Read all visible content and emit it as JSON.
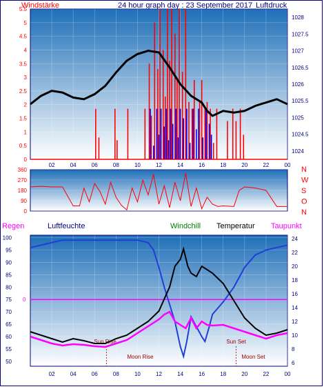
{
  "header": {
    "title": "24 hour graph day : 23 September 2017",
    "left_label": "Windstärke",
    "right_label": "Luftdruck"
  },
  "colors": {
    "bg_top": "#1f6fb8",
    "bg_bottom": "#ffffff",
    "axis": "#000080",
    "wind": "#ff0000",
    "gust": "#0000ff",
    "pressure": "#000000",
    "humidity": "#1f3fd8",
    "dewpoint": "#ff00ff",
    "temperature": "#000000",
    "rain": "#ff00ff",
    "sun_moon": "#990000"
  },
  "chart_data": [
    {
      "type": "line",
      "name": "wind-pressure",
      "x_ticks": [
        "02",
        "04",
        "06",
        "08",
        "10",
        "12",
        "14",
        "16",
        "18",
        "20",
        "22",
        "00"
      ],
      "y_left_ticks": [
        "0",
        "0.5",
        "1",
        "1.5",
        "2",
        "2.5",
        "3",
        "3.5",
        "4",
        "4.5",
        "5",
        "5.5"
      ],
      "y_left_range": [
        0,
        5.5
      ],
      "y_right_ticks": [
        "1024",
        "1024.5",
        "1025",
        "1025.5",
        "1026",
        "1026.5",
        "1027",
        "1027.5",
        "1028"
      ],
      "y_right_range": [
        1023.75,
        1028.25
      ],
      "wind_bars": [
        {
          "h": 6.1,
          "v": 1.85
        },
        {
          "h": 6.4,
          "v": 0.8
        },
        {
          "h": 7.9,
          "v": 1.85
        },
        {
          "h": 8.1,
          "v": 0.7
        },
        {
          "h": 9.1,
          "v": 1.85
        },
        {
          "h": 10.7,
          "v": 1.85
        },
        {
          "h": 11.1,
          "v": 3.5
        },
        {
          "h": 11.3,
          "v": 1.6
        },
        {
          "h": 11.6,
          "v": 5.0
        },
        {
          "h": 11.9,
          "v": 3.3
        },
        {
          "h": 12.1,
          "v": 5.5
        },
        {
          "h": 12.4,
          "v": 4.0
        },
        {
          "h": 12.6,
          "v": 2.3
        },
        {
          "h": 12.8,
          "v": 5.5
        },
        {
          "h": 13.0,
          "v": 3.6
        },
        {
          "h": 13.2,
          "v": 5.5
        },
        {
          "h": 13.5,
          "v": 4.6
        },
        {
          "h": 13.7,
          "v": 2.9
        },
        {
          "h": 13.9,
          "v": 5.5
        },
        {
          "h": 14.2,
          "v": 3.2
        },
        {
          "h": 14.5,
          "v": 5.5
        },
        {
          "h": 14.8,
          "v": 2.1
        },
        {
          "h": 15.1,
          "v": 1.85
        },
        {
          "h": 15.3,
          "v": 2.9
        },
        {
          "h": 15.8,
          "v": 2.1
        },
        {
          "h": 16.0,
          "v": 2.9
        },
        {
          "h": 16.3,
          "v": 1.85
        },
        {
          "h": 16.5,
          "v": 2.1
        },
        {
          "h": 16.8,
          "v": 1.85
        },
        {
          "h": 17.1,
          "v": 0.6
        },
        {
          "h": 17.4,
          "v": 1.85
        },
        {
          "h": 18.4,
          "v": 1.4
        },
        {
          "h": 18.9,
          "v": 1.85
        },
        {
          "h": 19.2,
          "v": 1.4
        },
        {
          "h": 19.6,
          "v": 1.85
        },
        {
          "h": 19.9,
          "v": 0.9
        }
      ],
      "gust_bars": [
        {
          "h": 11.2,
          "v": 1.85
        },
        {
          "h": 11.5,
          "v": 0.5
        },
        {
          "h": 11.8,
          "v": 1.85
        },
        {
          "h": 12.0,
          "v": 0.9
        },
        {
          "h": 12.2,
          "v": 1.85
        },
        {
          "h": 12.5,
          "v": 1.2
        },
        {
          "h": 12.7,
          "v": 1.85
        },
        {
          "h": 12.9,
          "v": 0.7
        },
        {
          "h": 13.1,
          "v": 1.85
        },
        {
          "h": 13.3,
          "v": 1.3
        },
        {
          "h": 13.6,
          "v": 1.85
        },
        {
          "h": 13.8,
          "v": 0.8
        },
        {
          "h": 14.0,
          "v": 1.85
        },
        {
          "h": 14.3,
          "v": 1.5
        },
        {
          "h": 14.6,
          "v": 1.85
        },
        {
          "h": 14.9,
          "v": 0.6
        },
        {
          "h": 15.2,
          "v": 1.85
        },
        {
          "h": 15.5,
          "v": 1.1
        },
        {
          "h": 15.7,
          "v": 1.85
        },
        {
          "h": 16.1,
          "v": 0.8
        },
        {
          "h": 16.4,
          "v": 1.85
        },
        {
          "h": 16.7,
          "v": 1.3
        },
        {
          "h": 16.9,
          "v": 0.9
        }
      ],
      "pressure": [
        {
          "h": 0.0,
          "v": 1025.4
        },
        {
          "h": 1.0,
          "v": 1025.65
        },
        {
          "h": 2.0,
          "v": 1025.8
        },
        {
          "h": 3.0,
          "v": 1025.75
        },
        {
          "h": 4.0,
          "v": 1025.6
        },
        {
          "h": 5.0,
          "v": 1025.55
        },
        {
          "h": 6.0,
          "v": 1025.7
        },
        {
          "h": 7.0,
          "v": 1025.95
        },
        {
          "h": 8.0,
          "v": 1026.35
        },
        {
          "h": 9.0,
          "v": 1026.7
        },
        {
          "h": 10.0,
          "v": 1026.9
        },
        {
          "h": 11.0,
          "v": 1027.0
        },
        {
          "h": 12.0,
          "v": 1026.95
        },
        {
          "h": 13.0,
          "v": 1026.5
        },
        {
          "h": 14.0,
          "v": 1026.0
        },
        {
          "h": 15.0,
          "v": 1025.65
        },
        {
          "h": 16.0,
          "v": 1025.45
        },
        {
          "h": 16.5,
          "v": 1025.2
        },
        {
          "h": 17.0,
          "v": 1025.05
        },
        {
          "h": 18.0,
          "v": 1025.2
        },
        {
          "h": 19.0,
          "v": 1025.15
        },
        {
          "h": 20.0,
          "v": 1025.2
        },
        {
          "h": 21.0,
          "v": 1025.35
        },
        {
          "h": 22.0,
          "v": 1025.45
        },
        {
          "h": 23.0,
          "v": 1025.55
        },
        {
          "h": 24.0,
          "v": 1025.4
        }
      ]
    },
    {
      "type": "scatter",
      "name": "wind-direction",
      "y_left_ticks": [
        "0",
        "90",
        "180",
        "270",
        "360"
      ],
      "y_range": [
        0,
        360
      ],
      "compass": [
        "N",
        "W",
        "S",
        "O",
        "N"
      ],
      "direction": [
        {
          "h": 0.0,
          "v": 210
        },
        {
          "h": 1.0,
          "v": 215
        },
        {
          "h": 2.0,
          "v": 210
        },
        {
          "h": 3.0,
          "v": 210
        },
        {
          "h": 4.0,
          "v": 45
        },
        {
          "h": 4.6,
          "v": 45
        },
        {
          "h": 5.0,
          "v": 200
        },
        {
          "h": 5.5,
          "v": 80
        },
        {
          "h": 6.0,
          "v": 240
        },
        {
          "h": 6.5,
          "v": 170
        },
        {
          "h": 7.0,
          "v": 60
        },
        {
          "h": 7.5,
          "v": 250
        },
        {
          "h": 8.0,
          "v": 120
        },
        {
          "h": 8.5,
          "v": 50
        },
        {
          "h": 9.0,
          "v": 10
        },
        {
          "h": 9.5,
          "v": 200
        },
        {
          "h": 10.0,
          "v": 80
        },
        {
          "h": 10.5,
          "v": 270
        },
        {
          "h": 11.0,
          "v": 140
        },
        {
          "h": 11.5,
          "v": 320
        },
        {
          "h": 12.0,
          "v": 60
        },
        {
          "h": 12.5,
          "v": 220
        },
        {
          "h": 13.0,
          "v": 30
        },
        {
          "h": 13.5,
          "v": 250
        },
        {
          "h": 14.0,
          "v": 90
        },
        {
          "h": 14.5,
          "v": 330
        },
        {
          "h": 15.0,
          "v": 40
        },
        {
          "h": 15.5,
          "v": 200
        },
        {
          "h": 16.0,
          "v": 20
        },
        {
          "h": 16.5,
          "v": 120
        },
        {
          "h": 17.0,
          "v": 60
        },
        {
          "h": 17.5,
          "v": 40
        },
        {
          "h": 18.0,
          "v": 45
        },
        {
          "h": 19.0,
          "v": 40
        },
        {
          "h": 19.5,
          "v": 180
        },
        {
          "h": 20.0,
          "v": 210
        },
        {
          "h": 21.0,
          "v": 200
        },
        {
          "h": 22.0,
          "v": 180
        },
        {
          "h": 23.0,
          "v": 40
        },
        {
          "h": 24.0,
          "v": 40
        }
      ]
    },
    {
      "type": "line",
      "name": "humidity-temperature",
      "y_left_ticks": [
        "50",
        "55",
        "60",
        "65",
        "70",
        "75",
        "80",
        "85",
        "90",
        "95",
        "100"
      ],
      "y_left_range": [
        48,
        101
      ],
      "y_right_ticks": [
        "6",
        "8",
        "10",
        "12",
        "14",
        "16",
        "18",
        "20",
        "22",
        "24"
      ],
      "y_right_range": [
        5.5,
        24.5
      ],
      "rain_label": "0",
      "rain_level": 75,
      "legend": [
        "Regen",
        "Luftfeuchte",
        "Windchill",
        "Temperatur",
        "Taupunkt"
      ],
      "events": [
        {
          "label": "Sun Rise",
          "h": 7.1
        },
        {
          "label": "Moon Rise",
          "h": 7.1
        },
        {
          "label": "Sun Set",
          "h": 19.2
        },
        {
          "label": "Moon Set",
          "h": 19.2
        }
      ],
      "humidity": [
        {
          "h": 0.0,
          "v": 96
        },
        {
          "h": 1.0,
          "v": 97
        },
        {
          "h": 2.0,
          "v": 98
        },
        {
          "h": 3.0,
          "v": 99
        },
        {
          "h": 6.0,
          "v": 99
        },
        {
          "h": 10.0,
          "v": 99
        },
        {
          "h": 11.0,
          "v": 98
        },
        {
          "h": 11.5,
          "v": 95
        },
        {
          "h": 12.0,
          "v": 88
        },
        {
          "h": 12.5,
          "v": 80
        },
        {
          "h": 13.0,
          "v": 73
        },
        {
          "h": 13.5,
          "v": 66
        },
        {
          "h": 14.0,
          "v": 56
        },
        {
          "h": 14.3,
          "v": 52
        },
        {
          "h": 14.6,
          "v": 58
        },
        {
          "h": 15.0,
          "v": 68
        },
        {
          "h": 15.5,
          "v": 64
        },
        {
          "h": 16.0,
          "v": 60
        },
        {
          "h": 16.3,
          "v": 58
        },
        {
          "h": 16.7,
          "v": 64
        },
        {
          "h": 17.0,
          "v": 69
        },
        {
          "h": 18.0,
          "v": 74
        },
        {
          "h": 19.0,
          "v": 80
        },
        {
          "h": 20.0,
          "v": 88
        },
        {
          "h": 21.0,
          "v": 93
        },
        {
          "h": 22.0,
          "v": 95
        },
        {
          "h": 23.0,
          "v": 96
        },
        {
          "h": 24.0,
          "v": 97
        }
      ],
      "temperature": [
        {
          "h": 0.0,
          "v": 10.5
        },
        {
          "h": 1.0,
          "v": 10.0
        },
        {
          "h": 2.0,
          "v": 9.5
        },
        {
          "h": 3.0,
          "v": 9.0
        },
        {
          "h": 4.0,
          "v": 9.5
        },
        {
          "h": 5.0,
          "v": 9.2
        },
        {
          "h": 6.0,
          "v": 8.8
        },
        {
          "h": 7.0,
          "v": 8.8
        },
        {
          "h": 8.0,
          "v": 9.5
        },
        {
          "h": 9.0,
          "v": 10.0
        },
        {
          "h": 10.0,
          "v": 11.0
        },
        {
          "h": 11.0,
          "v": 12.0
        },
        {
          "h": 12.0,
          "v": 13.5
        },
        {
          "h": 13.0,
          "v": 17.0
        },
        {
          "h": 13.5,
          "v": 20.0
        },
        {
          "h": 14.0,
          "v": 21.0
        },
        {
          "h": 14.3,
          "v": 22.5
        },
        {
          "h": 14.7,
          "v": 20.0
        },
        {
          "h": 15.0,
          "v": 19.0
        },
        {
          "h": 15.5,
          "v": 18.5
        },
        {
          "h": 16.0,
          "v": 20.0
        },
        {
          "h": 16.5,
          "v": 19.5
        },
        {
          "h": 17.0,
          "v": 19.0
        },
        {
          "h": 18.0,
          "v": 17.5
        },
        {
          "h": 19.0,
          "v": 15.0
        },
        {
          "h": 20.0,
          "v": 12.5
        },
        {
          "h": 21.0,
          "v": 11.0
        },
        {
          "h": 22.0,
          "v": 10.0
        },
        {
          "h": 23.0,
          "v": 10.3
        },
        {
          "h": 24.0,
          "v": 10.8
        }
      ],
      "dewpoint": [
        {
          "h": 0.0,
          "v": 9.8
        },
        {
          "h": 1.0,
          "v": 9.3
        },
        {
          "h": 2.0,
          "v": 8.8
        },
        {
          "h": 3.0,
          "v": 8.5
        },
        {
          "h": 4.0,
          "v": 8.7
        },
        {
          "h": 5.0,
          "v": 8.6
        },
        {
          "h": 6.0,
          "v": 8.4
        },
        {
          "h": 7.0,
          "v": 8.3
        },
        {
          "h": 8.0,
          "v": 8.8
        },
        {
          "h": 9.0,
          "v": 9.3
        },
        {
          "h": 10.0,
          "v": 10.3
        },
        {
          "h": 11.0,
          "v": 11.3
        },
        {
          "h": 12.0,
          "v": 12.3
        },
        {
          "h": 12.5,
          "v": 13.0
        },
        {
          "h": 13.0,
          "v": 13.4
        },
        {
          "h": 13.5,
          "v": 12.0
        },
        {
          "h": 14.0,
          "v": 11.5
        },
        {
          "h": 14.5,
          "v": 11.0
        },
        {
          "h": 15.0,
          "v": 12.5
        },
        {
          "h": 15.5,
          "v": 11.0
        },
        {
          "h": 16.0,
          "v": 12.0
        },
        {
          "h": 16.5,
          "v": 11.5
        },
        {
          "h": 17.0,
          "v": 11.4
        },
        {
          "h": 18.0,
          "v": 11.5
        },
        {
          "h": 19.0,
          "v": 11.0
        },
        {
          "h": 20.0,
          "v": 10.5
        },
        {
          "h": 21.0,
          "v": 10.0
        },
        {
          "h": 22.0,
          "v": 9.5
        },
        {
          "h": 23.0,
          "v": 10.0
        },
        {
          "h": 24.0,
          "v": 10.3
        }
      ]
    }
  ]
}
